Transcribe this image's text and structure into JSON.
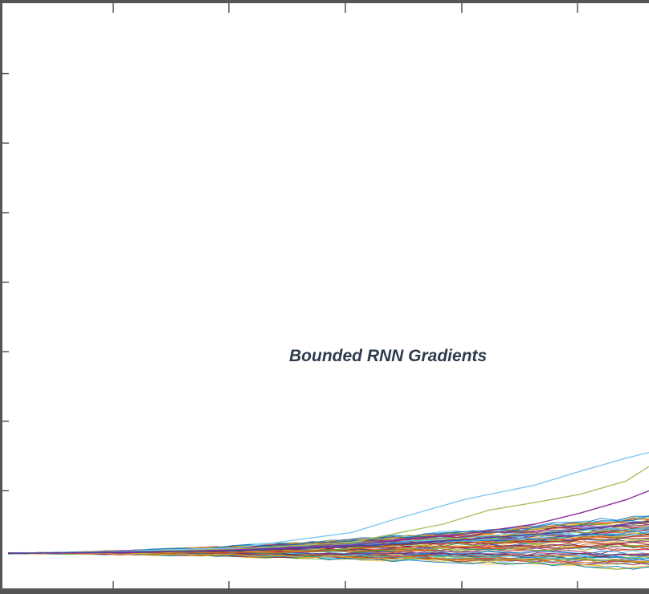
{
  "chart_data": {
    "type": "line",
    "title": "",
    "xlabel": "",
    "ylabel": "",
    "annotation": "Bounded RNN Gradients",
    "xlim": [
      0,
      56
    ],
    "ylim": [
      0,
      8
    ],
    "grid": false,
    "legend": "none",
    "axis_color": "#555555",
    "highlight_series": [
      {
        "color": "#7fc8f0",
        "x": [
          0,
          10,
          20,
          30,
          34,
          40,
          46,
          50,
          54,
          56
        ],
        "y": [
          0.1,
          0.13,
          0.18,
          0.4,
          0.6,
          0.88,
          1.08,
          1.28,
          1.47,
          1.55
        ]
      },
      {
        "color": "#a6c15f",
        "x": [
          0,
          10,
          20,
          30,
          38,
          42,
          46,
          50,
          54,
          56
        ],
        "y": [
          0.1,
          0.12,
          0.16,
          0.26,
          0.52,
          0.72,
          0.83,
          0.95,
          1.14,
          1.35
        ]
      },
      {
        "color": "#8a2f9a",
        "x": [
          0,
          10,
          20,
          30,
          40,
          46,
          50,
          54,
          56
        ],
        "y": [
          0.1,
          0.11,
          0.15,
          0.22,
          0.38,
          0.52,
          0.68,
          0.87,
          1.0
        ]
      },
      {
        "color": "#4b3fa0",
        "x": [
          0,
          10,
          20,
          30,
          40,
          48,
          52,
          56
        ],
        "y": [
          0.1,
          0.12,
          0.14,
          0.2,
          0.3,
          0.4,
          0.48,
          0.56
        ]
      }
    ],
    "bundle": {
      "series_count": 80,
      "start_y": 0.1,
      "x_end": 56,
      "end_y_range": [
        -0.12,
        0.65
      ],
      "colors": [
        "#0072bd",
        "#d95319",
        "#edb120",
        "#7e2f8e",
        "#77ac30",
        "#4dbeee",
        "#a2142f"
      ]
    }
  }
}
